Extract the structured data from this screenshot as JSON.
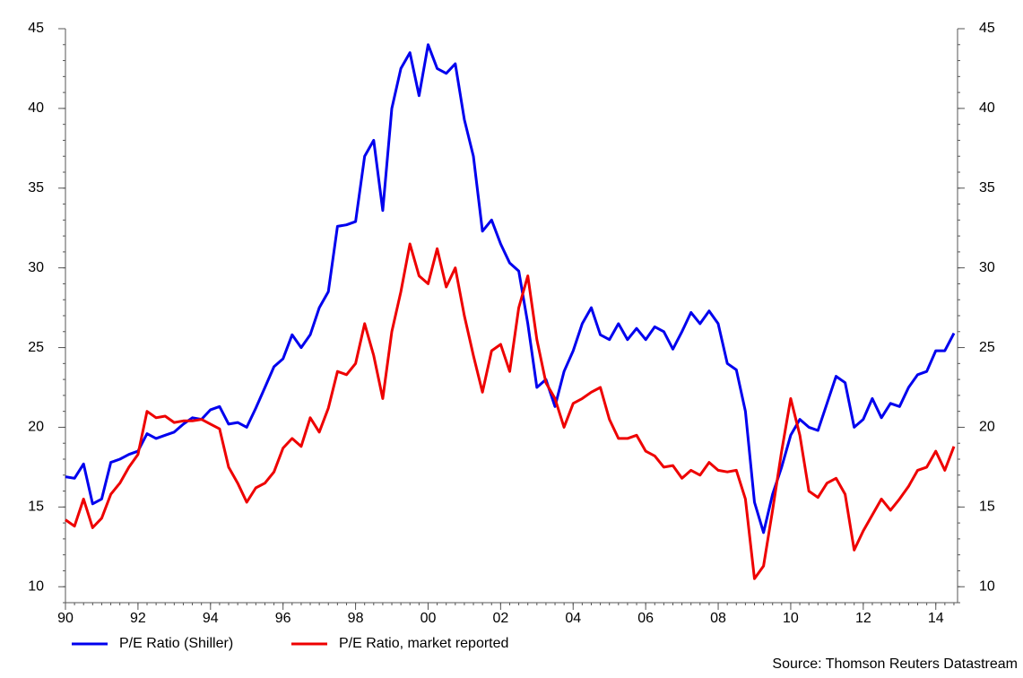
{
  "chart_data": {
    "type": "line",
    "source": "Source: Thomson Reuters Datastream",
    "x": [
      1990,
      1990.25,
      1990.5,
      1990.75,
      1991,
      1991.25,
      1991.5,
      1991.75,
      1992,
      1992.25,
      1992.5,
      1992.75,
      1993,
      1993.25,
      1993.5,
      1993.75,
      1994,
      1994.25,
      1994.5,
      1994.75,
      1995,
      1995.25,
      1995.5,
      1995.75,
      1996,
      1996.25,
      1996.5,
      1996.75,
      1997,
      1997.25,
      1997.5,
      1997.75,
      1998,
      1998.25,
      1998.5,
      1998.75,
      1999,
      1999.25,
      1999.5,
      1999.75,
      2000,
      2000.25,
      2000.5,
      2000.75,
      2001,
      2001.25,
      2001.5,
      2001.75,
      2002,
      2002.25,
      2002.5,
      2002.75,
      2003,
      2003.25,
      2003.5,
      2003.75,
      2004,
      2004.25,
      2004.5,
      2004.75,
      2005,
      2005.25,
      2005.5,
      2005.75,
      2006,
      2006.25,
      2006.5,
      2006.75,
      2007,
      2007.25,
      2007.5,
      2007.75,
      2008,
      2008.25,
      2008.5,
      2008.75,
      2009,
      2009.25,
      2009.5,
      2009.75,
      2010,
      2010.25,
      2010.5,
      2010.75,
      2011,
      2011.25,
      2011.5,
      2011.75,
      2012,
      2012.25,
      2012.5,
      2012.75,
      2013,
      2013.25,
      2013.5,
      2013.75,
      2014,
      2014.25,
      2014.5
    ],
    "series": [
      {
        "name": "P/E Ratio (Shiller)",
        "color": "#0000ee",
        "values": [
          16.9,
          16.8,
          17.7,
          15.2,
          15.5,
          17.8,
          18.0,
          18.3,
          18.5,
          19.6,
          19.3,
          19.5,
          19.7,
          20.2,
          20.6,
          20.5,
          21.1,
          21.3,
          20.2,
          20.3,
          20.0,
          21.2,
          22.5,
          23.8,
          24.3,
          25.8,
          25.0,
          25.8,
          27.5,
          28.5,
          32.6,
          32.7,
          32.9,
          37.0,
          38.0,
          33.6,
          40.0,
          42.5,
          43.5,
          40.8,
          44.0,
          42.5,
          42.2,
          42.8,
          39.3,
          37.0,
          32.3,
          33.0,
          31.5,
          30.3,
          29.8,
          26.5,
          22.5,
          23.0,
          21.3,
          23.5,
          24.8,
          26.5,
          27.5,
          25.8,
          25.5,
          26.5,
          25.5,
          26.2,
          25.5,
          26.3,
          26.0,
          24.9,
          26.0,
          27.2,
          26.5,
          27.3,
          26.5,
          24.0,
          23.6,
          21.0,
          15.3,
          13.4,
          15.8,
          17.5,
          19.5,
          20.5,
          20.0,
          19.8,
          21.5,
          23.2,
          22.8,
          20.0,
          20.5,
          21.8,
          20.6,
          21.5,
          21.3,
          22.5,
          23.3,
          23.5,
          24.8,
          24.8,
          25.9
        ]
      },
      {
        "name": "P/E Ratio, market reported",
        "color": "#ee0000",
        "values": [
          14.2,
          13.8,
          15.5,
          13.7,
          14.3,
          15.8,
          16.5,
          17.5,
          18.3,
          21.0,
          20.6,
          20.7,
          20.3,
          20.4,
          20.4,
          20.5,
          20.2,
          19.9,
          17.5,
          16.5,
          15.3,
          16.2,
          16.5,
          17.2,
          18.7,
          19.3,
          18.8,
          20.6,
          19.7,
          21.2,
          23.5,
          23.3,
          24.0,
          26.5,
          24.5,
          21.8,
          26.0,
          28.5,
          31.5,
          29.5,
          29.0,
          31.2,
          28.8,
          30.0,
          27.0,
          24.5,
          22.2,
          24.8,
          25.2,
          23.5,
          27.5,
          29.5,
          25.5,
          22.8,
          21.8,
          20.0,
          21.5,
          21.8,
          22.2,
          22.5,
          20.5,
          19.3,
          19.3,
          19.5,
          18.5,
          18.2,
          17.5,
          17.6,
          16.8,
          17.3,
          17.0,
          17.8,
          17.3,
          17.2,
          17.3,
          15.5,
          10.5,
          11.3,
          14.8,
          18.5,
          21.8,
          19.5,
          16.0,
          15.6,
          16.5,
          16.8,
          15.8,
          12.3,
          13.5,
          14.5,
          15.5,
          14.8,
          15.5,
          16.3,
          17.3,
          17.5,
          18.5,
          17.3,
          18.8
        ]
      }
    ],
    "xlim": [
      1990,
      2014.6
    ],
    "xticks": [
      {
        "value": 1990,
        "label": "90"
      },
      {
        "value": 1992,
        "label": "92"
      },
      {
        "value": 1994,
        "label": "94"
      },
      {
        "value": 1996,
        "label": "96"
      },
      {
        "value": 1998,
        "label": "98"
      },
      {
        "value": 2000,
        "label": "00"
      },
      {
        "value": 2002,
        "label": "02"
      },
      {
        "value": 2004,
        "label": "04"
      },
      {
        "value": 2006,
        "label": "06"
      },
      {
        "value": 2008,
        "label": "08"
      },
      {
        "value": 2010,
        "label": "10"
      },
      {
        "value": 2012,
        "label": "12"
      },
      {
        "value": 2014,
        "label": "14"
      }
    ],
    "ylim": [
      9,
      45
    ],
    "yticks": [
      10,
      15,
      20,
      25,
      30,
      35,
      40,
      45
    ],
    "y2lim": [
      9,
      45
    ],
    "y2ticks": [
      10,
      15,
      20,
      25,
      30,
      35,
      40,
      45
    ],
    "legend": "bottom-left",
    "grid": false
  }
}
